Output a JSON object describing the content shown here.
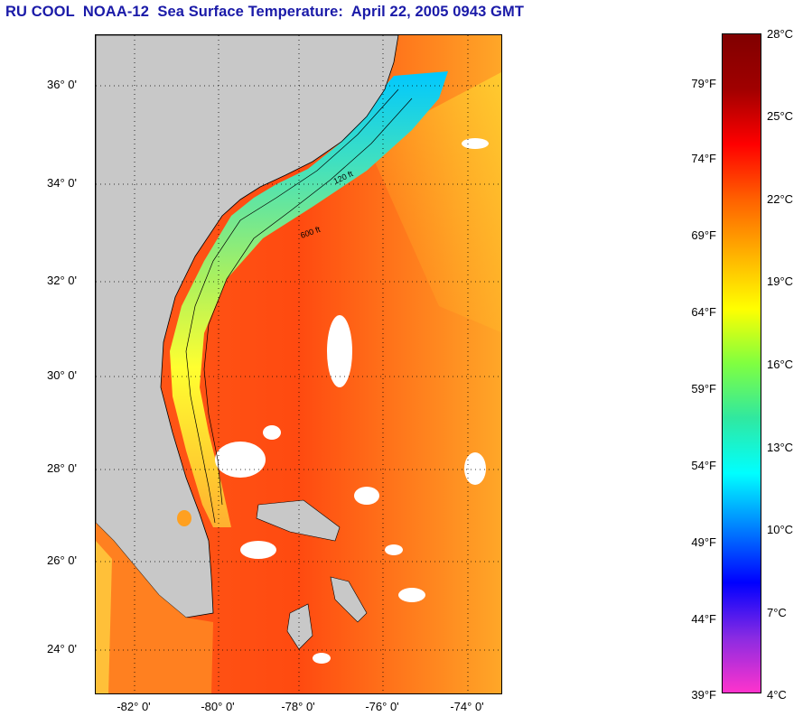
{
  "title": "RU COOL  NOAA-12  Sea Surface Temperature:  April 22, 2005 0943 GMT",
  "latitude_labels": [
    "36° 0'",
    "34° 0'",
    "32° 0'",
    "30° 0'",
    "28° 0'",
    "26° 0'",
    "24° 0'"
  ],
  "longitude_labels": [
    "-82° 0'",
    "-80° 0'",
    "-78° 0'",
    "-76° 0'",
    "-74° 0'"
  ],
  "isobath_labels": [
    "120 ft",
    "600 ft"
  ],
  "colorbar": {
    "fahrenheit_labels": [
      "79°F",
      "74°F",
      "69°F",
      "64°F",
      "59°F",
      "54°F",
      "49°F",
      "44°F",
      "39°F"
    ],
    "celsius_labels": [
      "28°C",
      "25°C",
      "22°C",
      "19°C",
      "16°C",
      "13°C",
      "10°C",
      "7°C",
      "4°C"
    ],
    "range_celsius": [
      4,
      28
    ],
    "colors": [
      "#ff33cc",
      "#8a2be2",
      "#0000ff",
      "#0080ff",
      "#00ffff",
      "#30e8a0",
      "#80ff40",
      "#ffff00",
      "#ffb000",
      "#ff6000",
      "#ff0000",
      "#a00000",
      "#800000"
    ]
  },
  "map_colors": {
    "land": "#c8c8c8",
    "cloud": "#ffffff",
    "gulf_stream": "#ff4a14",
    "shelf_water": "#70e8a0",
    "offshore": "#ffa520"
  }
}
